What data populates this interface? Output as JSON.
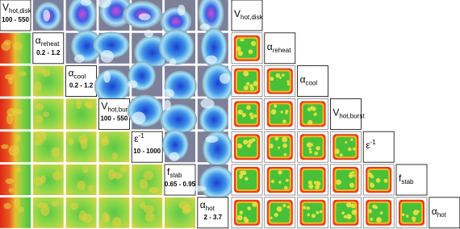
{
  "labels": [
    {
      "symbol": "V",
      "subscript": "hot,disk",
      "range": "100 - 550"
    },
    {
      "symbol": "α",
      "subscript": "reheat",
      "range": "0.2 - 1.2"
    },
    {
      "symbol": "α",
      "subscript": "cool",
      "range": "0.2 - 1.2"
    },
    {
      "symbol": "V",
      "subscript": "hot,burst",
      "range": "100 - 550"
    },
    {
      "symbol": "ε",
      "superscript": "-1",
      "range": "10 - 1000"
    },
    {
      "symbol": "f",
      "subscript": "stab",
      "range": "0.65 - 0.95"
    },
    {
      "symbol": "α",
      "subscript": "hot",
      "range": "2 - 3.7"
    }
  ]
}
